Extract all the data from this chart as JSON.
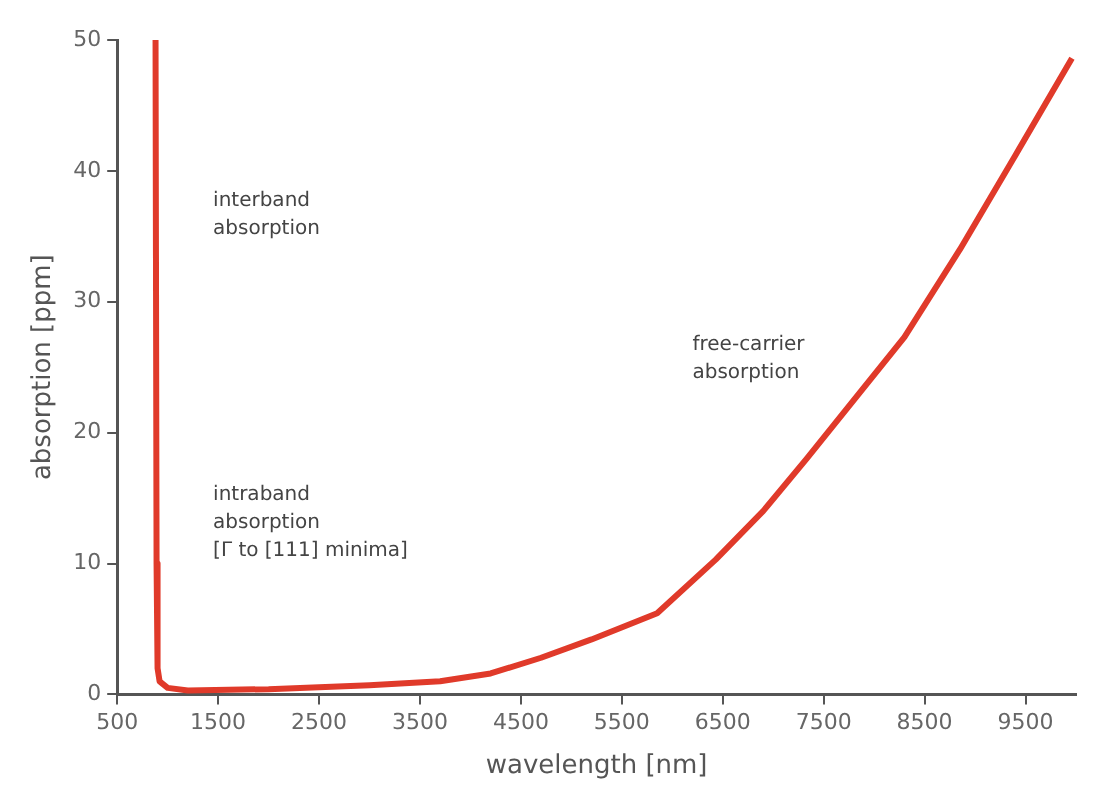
{
  "chart_data": {
    "type": "line",
    "xlabel": "wavelength [nm]",
    "ylabel": "absorption [ppm]",
    "x": [
      880,
      890,
      900,
      920,
      1000,
      1200,
      2000,
      3000,
      3700,
      4200,
      4700,
      5200,
      5850,
      6430,
      6900,
      7330,
      7800,
      8300,
      8850,
      9400,
      9960
    ],
    "series": [
      {
        "color": "#e03a2a",
        "values": [
          50,
          10,
          2,
          1,
          0.5,
          0.3,
          0.4,
          0.7,
          1,
          1.6,
          2.8,
          4.2,
          6.2,
          10.3,
          14,
          18,
          22.5,
          27.3,
          34,
          41.2,
          48.6
        ]
      }
    ],
    "xlim": [
      500,
      10000
    ],
    "xticks": [
      500,
      1500,
      2500,
      3500,
      4500,
      5500,
      6500,
      7500,
      8500,
      9500
    ],
    "ylim": [
      0,
      50
    ],
    "yticks": [
      0,
      10,
      20,
      30,
      40,
      50
    ],
    "grid": false,
    "legend": false,
    "marker": "none",
    "line_style": "solid",
    "annotations": [
      "interband\nabsorption",
      "intraband\nabsorption\n[Γ to [111] minima]",
      "free-carrier\nabsorption"
    ]
  }
}
